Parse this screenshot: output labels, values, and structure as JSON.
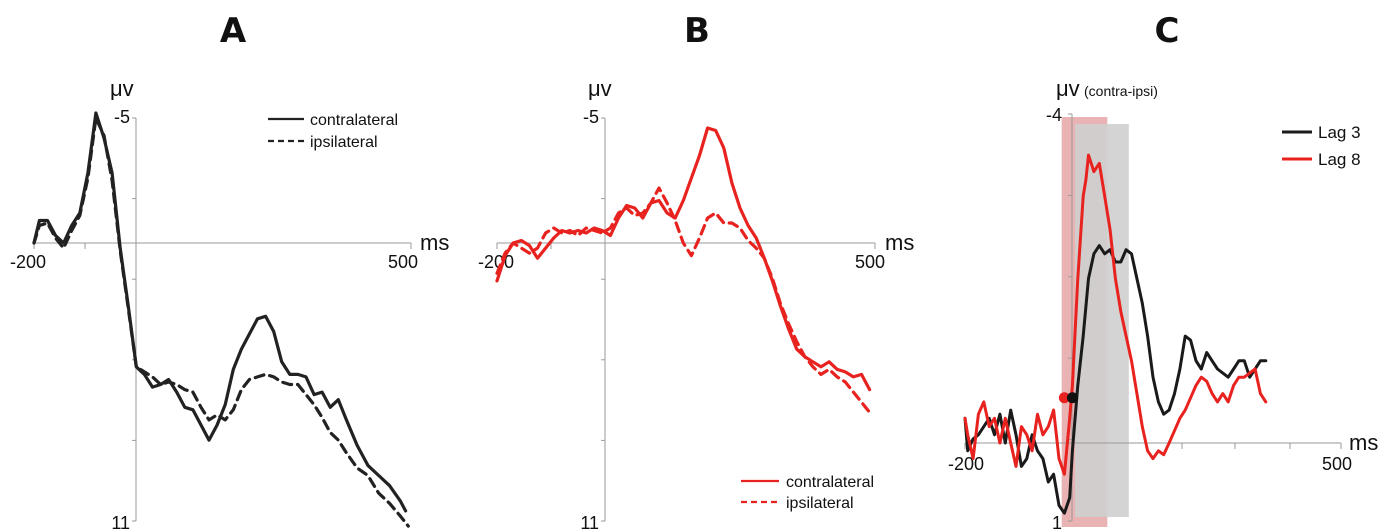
{
  "chart_data": [
    {
      "panel": "A",
      "type": "line",
      "title": "A",
      "ylabel_unit": "μv",
      "xlabel_unit": "ms",
      "x_tick_labels": [
        "-200",
        "500"
      ],
      "y_tick_labels": [
        "-5",
        "11"
      ],
      "ylim": [
        -5,
        11
      ],
      "y_inverted": true,
      "xlim": [
        -200,
        500
      ],
      "legend": {
        "position": "top-right",
        "entries": [
          "contralateral",
          "ipsilateral"
        ]
      },
      "series": [
        {
          "name": "contralateral",
          "color": "#222222",
          "dash": false,
          "x": [
            -200,
            -190,
            -175,
            -160,
            -145,
            -130,
            -115,
            -100,
            -85,
            -70,
            -55,
            -40,
            -25,
            -10,
            5,
            20,
            35,
            50,
            65,
            80,
            95,
            110,
            125,
            140,
            155,
            170,
            185,
            200,
            215,
            230,
            245,
            260,
            275,
            290,
            305,
            320,
            335,
            350,
            365,
            380,
            400,
            420,
            440,
            460,
            480,
            490
          ],
          "y": [
            0,
            -0.9,
            -0.9,
            -0.3,
            0,
            -0.7,
            -1.2,
            -2.8,
            -5.2,
            -4.2,
            -2.8,
            0.2,
            2.5,
            4.9,
            5.2,
            5.7,
            5.6,
            5.4,
            5.9,
            6.5,
            6.6,
            7.2,
            7.8,
            7.2,
            6.4,
            5.0,
            4.2,
            3.6,
            3.0,
            2.9,
            3.5,
            4.7,
            5.2,
            5.2,
            5.3,
            6.0,
            5.9,
            6.5,
            6.2,
            7.0,
            8.0,
            8.8,
            9.2,
            9.6,
            10.2,
            10.6
          ]
        },
        {
          "name": "ipsilateral",
          "color": "#222222",
          "dash": true,
          "x": [
            -200,
            -190,
            -175,
            -160,
            -145,
            -130,
            -115,
            -100,
            -85,
            -70,
            -55,
            -40,
            -25,
            -10,
            5,
            20,
            35,
            50,
            65,
            80,
            95,
            110,
            125,
            140,
            155,
            170,
            185,
            200,
            215,
            230,
            245,
            260,
            275,
            290,
            305,
            320,
            335,
            350,
            365,
            380,
            400,
            420,
            440,
            460,
            480,
            495
          ],
          "y": [
            0,
            -0.7,
            -0.8,
            -0.2,
            0.2,
            -0.5,
            -1.1,
            -2.6,
            -5.0,
            -4.3,
            -2.5,
            0.3,
            2.6,
            4.9,
            5.1,
            5.3,
            5.6,
            5.5,
            5.6,
            5.8,
            5.9,
            6.5,
            7.0,
            6.8,
            7.0,
            6.6,
            5.8,
            5.4,
            5.3,
            5.2,
            5.3,
            5.5,
            5.6,
            5.6,
            6.0,
            6.4,
            6.9,
            7.5,
            7.8,
            8.3,
            8.9,
            9.2,
            9.9,
            10.3,
            10.8,
            11.2
          ]
        }
      ]
    },
    {
      "panel": "B",
      "type": "line",
      "title": "B",
      "ylabel_unit": "μv",
      "xlabel_unit": "ms",
      "x_tick_labels": [
        "-200",
        "500"
      ],
      "y_tick_labels": [
        "-5",
        "11"
      ],
      "ylim": [
        -5,
        11
      ],
      "y_inverted": true,
      "xlim": [
        -200,
        500
      ],
      "legend": {
        "position": "bottom-right",
        "entries": [
          "contralateral",
          "ipsilateral"
        ]
      },
      "series": [
        {
          "name": "contralateral",
          "color": "#e8221e",
          "dash": false,
          "x": [
            -200,
            -185,
            -170,
            -155,
            -140,
            -125,
            -110,
            -95,
            -80,
            -65,
            -50,
            -35,
            -20,
            -5,
            10,
            25,
            40,
            55,
            70,
            85,
            100,
            115,
            130,
            145,
            160,
            175,
            190,
            205,
            220,
            235,
            250,
            265,
            280,
            295,
            310,
            325,
            340,
            355,
            370,
            385,
            400,
            415,
            430,
            445,
            460,
            475,
            490
          ],
          "y": [
            1.5,
            0.5,
            0,
            -0.1,
            0.1,
            0.6,
            0.2,
            -0.2,
            -0.5,
            -0.4,
            -0.5,
            -0.4,
            -0.6,
            -0.5,
            -0.3,
            -1,
            -1.5,
            -1.4,
            -1,
            -1.6,
            -1.7,
            -1.2,
            -1,
            -1.7,
            -2.6,
            -3.5,
            -4.6,
            -4.5,
            -3.8,
            -2.4,
            -1.4,
            -0.7,
            -0.2,
            0.6,
            1.5,
            2.5,
            3.4,
            4.2,
            4.5,
            4.7,
            4.9,
            4.7,
            5.0,
            5.1,
            5.3,
            5.2,
            5.8
          ]
        },
        {
          "name": "ipsilateral",
          "color": "#e8221e",
          "dash": true,
          "x": [
            -200,
            -185,
            -170,
            -155,
            -140,
            -125,
            -110,
            -95,
            -80,
            -65,
            -50,
            -35,
            -20,
            -5,
            10,
            25,
            40,
            55,
            70,
            85,
            100,
            115,
            130,
            145,
            160,
            175,
            190,
            205,
            220,
            235,
            250,
            265,
            280,
            295,
            310,
            325,
            340,
            355,
            370,
            385,
            400,
            415,
            430,
            445,
            460,
            475,
            490
          ],
          "y": [
            1.2,
            0.4,
            0,
            0.2,
            0.4,
            0.2,
            -0.4,
            -0.6,
            -0.4,
            -0.5,
            -0.3,
            -0.6,
            -0.5,
            -0.4,
            -0.6,
            -1.2,
            -1.4,
            -1.1,
            -1.2,
            -1.6,
            -2.2,
            -1.6,
            -0.9,
            0,
            0.5,
            -0.2,
            -1.0,
            -1.2,
            -0.8,
            -0.8,
            -0.6,
            -0.1,
            0.2,
            0.6,
            1.4,
            2.4,
            3.2,
            3.9,
            4.5,
            4.9,
            5.2,
            5.0,
            5.3,
            5.5,
            5.9,
            6.3,
            6.7
          ]
        }
      ]
    },
    {
      "panel": "C",
      "type": "line",
      "title": "C",
      "ylabel_unit": "μv",
      "ylabel_note": "(contra-ipsi)",
      "xlabel_unit": "ms",
      "x_tick_labels": [
        "-200",
        "500"
      ],
      "y_tick_labels": [
        "-4",
        "1"
      ],
      "ylim": [
        -4,
        1
      ],
      "y_inverted": true,
      "xlim": [
        -200,
        500
      ],
      "legend": {
        "position": "top-right",
        "entries": [
          "Lag 3",
          "Lag 8"
        ]
      },
      "shaded_windows": [
        {
          "x_start": -20,
          "x_end": 65,
          "color": "#e6a6a6"
        },
        {
          "x_start": 5,
          "x_end": 105,
          "color": "#cfcfcf"
        }
      ],
      "onset_markers": [
        {
          "series": "Lag 8",
          "x": -15,
          "y": -0.55,
          "color": "#e8221e"
        },
        {
          "series": "Lag 3",
          "x": 0,
          "y": -0.55,
          "color": "#111111"
        }
      ],
      "series": [
        {
          "name": "Lag 3",
          "color": "#1a1a1a",
          "dash": false,
          "x": [
            -200,
            -195,
            -185,
            -175,
            -165,
            -155,
            -145,
            -135,
            -125,
            -115,
            -105,
            -95,
            -85,
            -75,
            -65,
            -55,
            -45,
            -35,
            -25,
            -15,
            -5,
            0,
            10,
            20,
            30,
            40,
            50,
            60,
            70,
            80,
            90,
            100,
            110,
            120,
            130,
            140,
            150,
            160,
            170,
            180,
            190,
            200,
            210,
            220,
            230,
            240,
            250,
            260,
            270,
            280,
            290,
            300,
            310,
            320,
            330,
            340,
            350,
            360
          ],
          "y": [
            -0.3,
            0.1,
            -0.05,
            -0.1,
            -0.2,
            -0.3,
            -0.1,
            -0.35,
            0,
            -0.4,
            -0.1,
            0.3,
            0.2,
            -0.1,
            0.1,
            0.2,
            0.5,
            0.4,
            0.8,
            0.9,
            0.7,
            0.1,
            -0.7,
            -1.3,
            -2.0,
            -2.3,
            -2.4,
            -2.3,
            -2.35,
            -2.2,
            -2.2,
            -2.35,
            -2.3,
            -2.0,
            -1.7,
            -1.3,
            -0.8,
            -0.5,
            -0.35,
            -0.4,
            -0.6,
            -0.9,
            -1.3,
            -1.25,
            -1.0,
            -0.9,
            -1.1,
            -1.0,
            -0.9,
            -0.85,
            -0.8,
            -0.9,
            -1.0,
            -1.0,
            -0.8,
            -0.9,
            -1.0,
            -1.0
          ]
        },
        {
          "name": "Lag 8",
          "color": "#e8221e",
          "dash": false,
          "x": [
            -200,
            -195,
            -185,
            -175,
            -165,
            -155,
            -145,
            -135,
            -125,
            -115,
            -105,
            -95,
            -85,
            -75,
            -65,
            -55,
            -45,
            -35,
            -25,
            -15,
            -5,
            0,
            10,
            20,
            25,
            30,
            40,
            50,
            60,
            70,
            80,
            90,
            100,
            110,
            120,
            130,
            140,
            150,
            160,
            170,
            180,
            190,
            200,
            210,
            220,
            230,
            240,
            250,
            260,
            270,
            280,
            290,
            300,
            310,
            320,
            330,
            340,
            350,
            360
          ],
          "y": [
            -0.3,
            -0.1,
            0.2,
            -0.35,
            -0.5,
            -0.2,
            -0.3,
            0,
            -0.3,
            0,
            0.3,
            -0.2,
            -0.1,
            0.1,
            -0.35,
            -0.1,
            -0.2,
            -0.4,
            0.2,
            0.4,
            -0.3,
            -0.7,
            -2.0,
            -3.0,
            -3.2,
            -3.5,
            -3.3,
            -3.4,
            -3.0,
            -2.6,
            -2.0,
            -1.6,
            -1.3,
            -1.0,
            -0.6,
            -0.2,
            0.1,
            0.2,
            0.1,
            0.15,
            0.0,
            -0.15,
            -0.3,
            -0.4,
            -0.55,
            -0.7,
            -0.8,
            -0.75,
            -0.6,
            -0.5,
            -0.6,
            -0.5,
            -0.7,
            -0.8,
            -0.8,
            -0.85,
            -0.9,
            -0.6,
            -0.5
          ]
        }
      ]
    }
  ]
}
